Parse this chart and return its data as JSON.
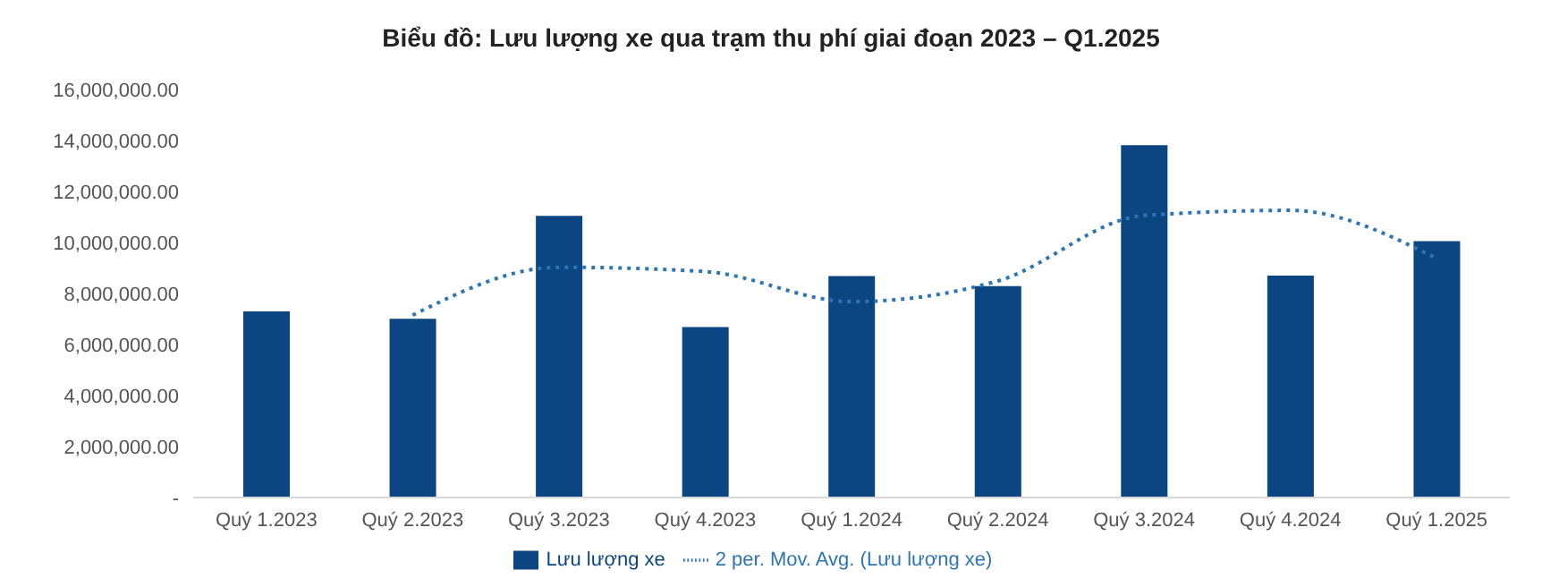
{
  "chart_data": {
    "type": "bar",
    "title": "Biểu đồ: Lưu lượng xe qua trạm thu phí giai đoạn 2023 – Q1.2025",
    "categories": [
      "Quý 1.2023",
      "Quý 2.2023",
      "Quý 3.2023",
      "Quý 4.2023",
      "Quý 1.2024",
      "Quý 2.2024",
      "Quý 3.2024",
      "Quý 4.2024",
      "Quý 1.2025"
    ],
    "series": [
      {
        "name": "Lưu lượng xe",
        "color": "#0b4582",
        "values": [
          7300000,
          7010000,
          11040000,
          6680000,
          8680000,
          8290000,
          13820000,
          8700000,
          10050000
        ]
      },
      {
        "name": "2 per. Mov. Avg. (Lưu lượng xe)",
        "type": "line",
        "color": "#2e75b6",
        "line_style": "dotted",
        "values": [
          null,
          7150000,
          9030000,
          8860000,
          7680000,
          8490000,
          11060000,
          11260000,
          9380000
        ]
      }
    ],
    "ylim": [
      0,
      16000000
    ],
    "yticks": [
      {
        "value": 0,
        "label": "-"
      },
      {
        "value": 2000000,
        "label": "2,000,000.00"
      },
      {
        "value": 4000000,
        "label": "4,000,000.00"
      },
      {
        "value": 6000000,
        "label": "6,000,000.00"
      },
      {
        "value": 8000000,
        "label": "8,000,000.00"
      },
      {
        "value": 10000000,
        "label": "10,000,000.00"
      },
      {
        "value": 12000000,
        "label": "12,000,000.00"
      },
      {
        "value": 14000000,
        "label": "14,000,000.00"
      },
      {
        "value": 16000000,
        "label": "16,000,000.00"
      }
    ],
    "grid": false,
    "legend": "bottom",
    "marker": "none"
  }
}
